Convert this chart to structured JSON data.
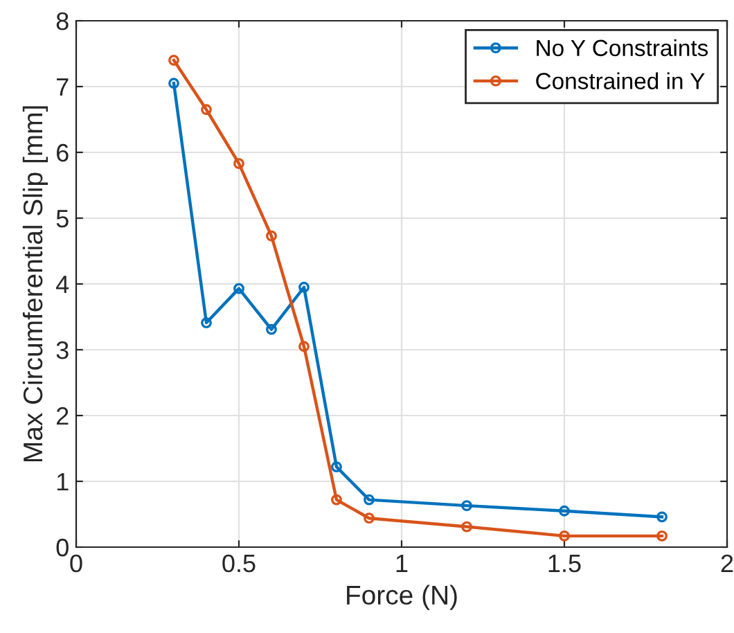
{
  "chart_data": {
    "type": "line",
    "xlabel": "Force (N)",
    "ylabel": "Max Circumferential Slip [mm]",
    "x": [
      0.3,
      0.4,
      0.5,
      0.6,
      0.7,
      0.8,
      0.9,
      1.2,
      1.5,
      1.8
    ],
    "series": [
      {
        "name": "No Y Constraints",
        "color": "#0072bd",
        "values": [
          7.05,
          3.41,
          3.93,
          3.31,
          3.95,
          1.22,
          0.72,
          0.63,
          0.55,
          0.46
        ]
      },
      {
        "name": "Constrained in Y",
        "color": "#d95319",
        "values": [
          7.4,
          6.65,
          5.83,
          4.73,
          3.05,
          0.72,
          0.44,
          0.31,
          0.17,
          0.17
        ]
      }
    ],
    "xlim": [
      0,
      2
    ],
    "ylim": [
      0,
      8
    ],
    "xticks": [
      0,
      0.5,
      1,
      1.5,
      2
    ],
    "yticks": [
      0,
      1,
      2,
      3,
      4,
      5,
      6,
      7,
      8
    ],
    "grid": true,
    "legend": "top right",
    "marker": "circle",
    "line_style": "solid"
  }
}
